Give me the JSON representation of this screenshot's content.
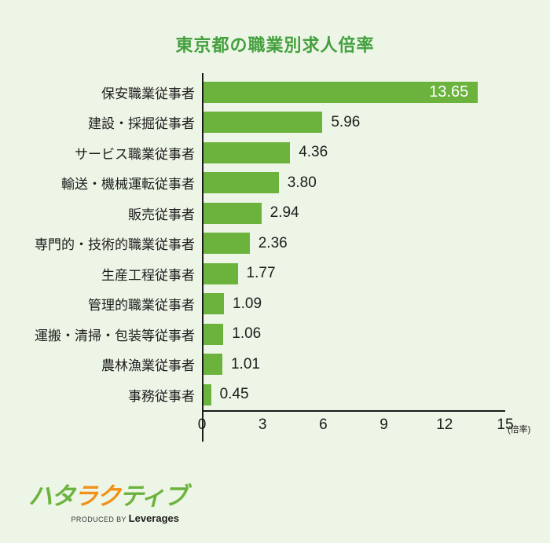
{
  "title": "東京都の職業別求人倍率",
  "chart_data": {
    "type": "bar",
    "orientation": "horizontal",
    "title": "東京都の職業別求人倍率",
    "categories": [
      "保安職業従事者",
      "建設・採掘従事者",
      "サービス職業従事者",
      "輸送・機械運転従事者",
      "販売従事者",
      "専門的・技術的職業従事者",
      "生産工程従事者",
      "管理的職業従事者",
      "運搬・清掃・包装等従事者",
      "農林漁業従事者",
      "事務従事者"
    ],
    "values": [
      13.65,
      5.96,
      4.36,
      3.8,
      2.94,
      2.36,
      1.77,
      1.09,
      1.06,
      1.01,
      0.45
    ],
    "value_decimals": 2,
    "xticks": [
      0,
      3,
      6,
      9,
      12,
      15
    ],
    "xlim": [
      0,
      15
    ],
    "xlabel": "(倍率)",
    "grid": false,
    "legend": false,
    "bar_color": "#6cb33e",
    "value_label_inside_color": "#ffffff",
    "value_label_outside_color": "#1d1d1d"
  },
  "footer": {
    "logo_chars": [
      {
        "ch": "ハ",
        "color": "#6cb33e"
      },
      {
        "ch": "タ",
        "color": "#6cb33e"
      },
      {
        "ch": "ラ",
        "color": "#f19116"
      },
      {
        "ch": "ク",
        "color": "#f19116"
      },
      {
        "ch": "テ",
        "color": "#6cb33e"
      },
      {
        "ch": "ィ",
        "color": "#6cb33e"
      },
      {
        "ch": "ブ",
        "color": "#6cb33e"
      }
    ],
    "produced_by": "PRODUCED BY",
    "brand": "Leverages"
  },
  "colors": {
    "background": "#edf5e6",
    "title": "#44a03e",
    "bar": "#6cb33e",
    "axis": "#1a1a1a",
    "logo_orange": "#f19116"
  }
}
